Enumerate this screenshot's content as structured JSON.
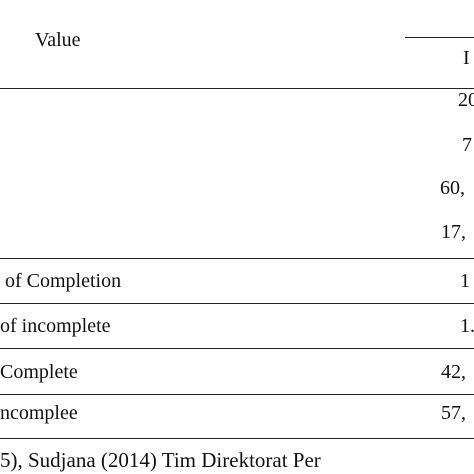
{
  "header": {
    "label": "Value",
    "column": "I"
  },
  "rows": [
    {
      "value": "20"
    },
    {
      "value": "7"
    },
    {
      "value": "60,"
    },
    {
      "value": "17,"
    },
    {
      "label": "of Completion",
      "value": "1"
    },
    {
      "label": "of incomplete",
      "value": "1."
    },
    {
      "label": "Complete",
      "value": "42,"
    },
    {
      "label": "ncomplee",
      "value": "57,"
    }
  ],
  "footer": "5), Sudjana (2014) Tim Direktorat Per"
}
